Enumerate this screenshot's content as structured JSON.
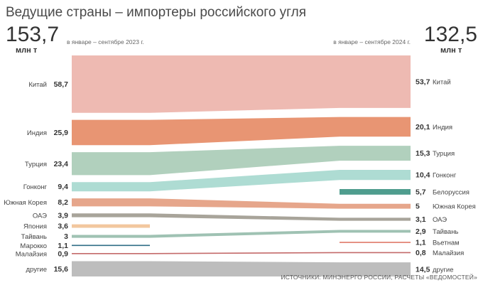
{
  "chart_data": {
    "type": "sankey-slope",
    "title": "Ведущие страны – импортеры российского угля",
    "left": {
      "total": "153,7",
      "unit": "млн т",
      "period": "в январе – сентябре 2023 г."
    },
    "right": {
      "total": "132,5",
      "unit": "млн т",
      "period": "в январе – сентябре 2024 г."
    },
    "source": "ИСТОЧНИКИ: МИНЭНЕРГО РОССИИ, РАСЧЕТЫ «ВЕДОМОСТЕЙ»",
    "series": [
      {
        "name": "Китай",
        "v2023": 58.7,
        "label2023": "58,7",
        "v2024": 53.7,
        "label2024": "53,7",
        "color": "#eebab2"
      },
      {
        "name": "Индия",
        "v2023": 25.9,
        "label2023": "25,9",
        "v2024": 20.1,
        "label2024": "20,1",
        "color": "#e89573"
      },
      {
        "name": "Турция",
        "v2023": 23.4,
        "label2023": "23,4",
        "v2024": 15.3,
        "label2024": "15,3",
        "color": "#b1d0bd"
      },
      {
        "name": "Гонконг",
        "v2023": 9.4,
        "label2023": "9,4",
        "v2024": 10.4,
        "label2024": "10,4",
        "color": "#aedcd3"
      },
      {
        "name": "Белоруссия",
        "v2023": null,
        "label2023": "",
        "v2024": 5.7,
        "label2024": "5,7",
        "color": "#4f9d8e"
      },
      {
        "name": "Южная Корея",
        "v2023": 8.2,
        "label2023": "8,2",
        "v2024": 5,
        "label2024": "5",
        "color": "#e6a68b"
      },
      {
        "name": "ОАЭ",
        "v2023": 3.9,
        "label2023": "3,9",
        "v2024": 3.1,
        "label2024": "3,1",
        "color": "#a8a49a"
      },
      {
        "name": "Япония",
        "v2023": 3.6,
        "label2023": "3,6",
        "v2024": null,
        "label2024": "",
        "color": "#f2c79e"
      },
      {
        "name": "Тайвань",
        "v2023": 3,
        "label2023": "3",
        "v2024": 2.9,
        "label2024": "2,9",
        "color": "#9fc2b3"
      },
      {
        "name": "Вьетнам",
        "v2023": null,
        "label2023": "",
        "v2024": 1.1,
        "label2024": "1,1",
        "color": "#e07a6a"
      },
      {
        "name": "Марокко",
        "v2023": 1.1,
        "label2023": "1,1",
        "v2024": null,
        "label2024": "",
        "color": "#2f6e86"
      },
      {
        "name": "Малайзия",
        "v2023": 0.9,
        "label2023": "0,9",
        "v2024": 0.8,
        "label2024": "0,8",
        "color": "#c46a6a"
      },
      {
        "name": "другие",
        "v2023": 15.6,
        "label2023": "15,6",
        "v2024": 14.5,
        "label2024": "14,5",
        "color": "#bdbdbd"
      }
    ]
  }
}
